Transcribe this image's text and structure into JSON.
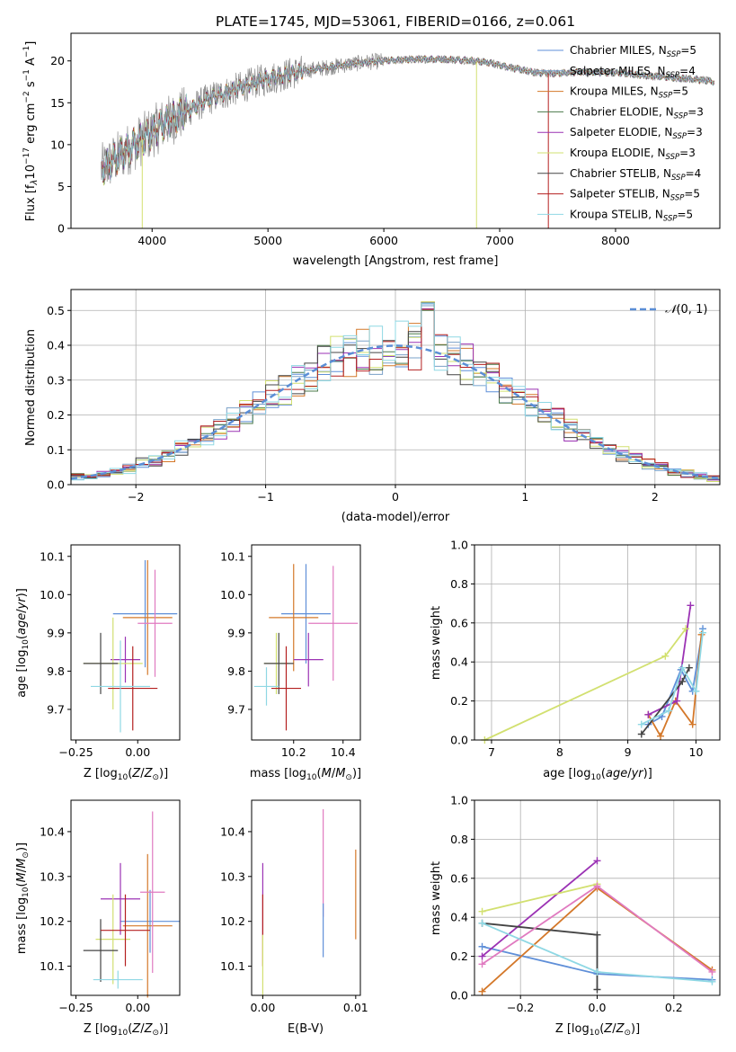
{
  "chart_data": [
    {
      "type": "line",
      "title": "PLATE=1745, MJD=53061, FIBERID=0166, z=0.061",
      "xlabel": "wavelength [Angstrom, rest frame]",
      "ylabel": "Flux [f_λ10^-17 erg cm^-2 s^-1 A^-1]",
      "xlim": [
        3300,
        8900
      ],
      "ylim": [
        0,
        23.3
      ],
      "xticks": [
        4000,
        5000,
        6000,
        7000,
        8000
      ],
      "yticks": [
        0,
        5,
        10,
        15,
        20
      ],
      "legend_position": "upper right",
      "continuum": {
        "x": [
          3560,
          3700,
          3900,
          4100,
          4300,
          4500,
          4700,
          4900,
          5100,
          5300,
          5500,
          5700,
          5900,
          6100,
          6300,
          6500,
          6700,
          6900,
          7100,
          7300,
          7500,
          7700,
          7900,
          8100,
          8300,
          8500,
          8700,
          8850
        ],
        "y": [
          7,
          8.5,
          10.5,
          12.5,
          14,
          15.5,
          16.5,
          17.5,
          18.2,
          18.8,
          19.2,
          19.6,
          19.9,
          20.1,
          20.2,
          20.2,
          20.1,
          19.8,
          19.2,
          18.6,
          18.5,
          18.7,
          18.6,
          18.5,
          18.2,
          18.0,
          17.8,
          17.5
        ]
      },
      "series": [
        {
          "name": "Chabrier MILES, N_SSP=5",
          "color": "#5f8fd8"
        },
        {
          "name": "Salpeter MILES, N_SSP=4",
          "color": "#7aa0c8"
        },
        {
          "name": "Kroupa MILES, N_SSP=5",
          "color": "#d4782a"
        },
        {
          "name": "Chabrier ELODIE, N_SSP=3",
          "color": "#4a7a4a"
        },
        {
          "name": "Salpeter ELODIE, N_SSP=3",
          "color": "#9b32b4"
        },
        {
          "name": "Kroupa ELODIE, N_SSP=3",
          "color": "#d2e070"
        },
        {
          "name": "Chabrier STELIB, N_SSP=4",
          "color": "#444444"
        },
        {
          "name": "Salpeter STELIB, N_SSP=5",
          "color": "#b42020"
        },
        {
          "name": "Kroupa STELIB, N_SSP=5",
          "color": "#8fd8e4"
        }
      ]
    },
    {
      "type": "line",
      "xlabel": "(data-model)/error",
      "ylabel": "Normed distribution",
      "xlim": [
        -2.5,
        2.5
      ],
      "ylim": [
        0,
        0.56
      ],
      "xticks": [
        -2,
        -1,
        0,
        1,
        2
      ],
      "yticks": [
        0.0,
        0.1,
        0.2,
        0.3,
        0.4,
        0.5
      ],
      "grid": true,
      "legend": "N(0,1)",
      "legend_position": "upper right"
    },
    {
      "type": "scatter",
      "xlabel": "Z [log10(Z/Z⊙)]",
      "ylabel": "age [log10(age/yr)]",
      "xlim": [
        -0.27,
        0.17
      ],
      "ylim": [
        9.62,
        10.13
      ],
      "xticks": [
        -0.25,
        0.0
      ],
      "yticks": [
        9.7,
        9.8,
        9.9,
        10.0,
        10.1
      ],
      "points": [
        {
          "x": 0.03,
          "y": 9.95,
          "xerr": 0.13,
          "yerr": 0.14,
          "color": "#5f8fd8"
        },
        {
          "x": 0.04,
          "y": 9.94,
          "xerr": 0.1,
          "yerr": 0.15,
          "color": "#d4782a"
        },
        {
          "x": 0.07,
          "y": 9.925,
          "xerr": 0.07,
          "yerr": 0.14,
          "color": "#e07ac0"
        },
        {
          "x": -0.05,
          "y": 9.83,
          "xerr": 0.06,
          "yerr": 0.06,
          "color": "#9b32b4"
        },
        {
          "x": -0.1,
          "y": 9.82,
          "xerr": 0.12,
          "yerr": 0.12,
          "color": "#d2e070"
        },
        {
          "x": -0.15,
          "y": 9.82,
          "xerr": 0.07,
          "yerr": 0.08,
          "color": "#444444"
        },
        {
          "x": -0.02,
          "y": 9.755,
          "xerr": 0.1,
          "yerr": 0.11,
          "color": "#b42020"
        },
        {
          "x": -0.07,
          "y": 9.76,
          "xerr": 0.12,
          "yerr": 0.12,
          "color": "#8fd8e4"
        }
      ]
    },
    {
      "type": "scatter",
      "xlabel": "mass [log10(M/M⊙)]",
      "xlim": [
        10.03,
        10.47
      ],
      "ylim": [
        9.62,
        10.13
      ],
      "xticks": [
        10.2,
        10.4
      ],
      "yticks": [
        9.7,
        9.8,
        9.9,
        10.0,
        10.1
      ],
      "points": [
        {
          "x": 10.25,
          "y": 9.95,
          "xerr": 0.1,
          "yerr": 0.13,
          "color": "#5f8fd8"
        },
        {
          "x": 10.2,
          "y": 9.94,
          "xerr": 0.1,
          "yerr": 0.14,
          "color": "#d4782a"
        },
        {
          "x": 10.36,
          "y": 9.925,
          "xerr": 0.1,
          "yerr": 0.15,
          "color": "#e07ac0"
        },
        {
          "x": 10.26,
          "y": 9.83,
          "xerr": 0.06,
          "yerr": 0.07,
          "color": "#9b32b4"
        },
        {
          "x": 10.13,
          "y": 9.82,
          "xerr": 0.05,
          "yerr": 0.08,
          "color": "#d2e070"
        },
        {
          "x": 10.14,
          "y": 9.82,
          "xerr": 0.06,
          "yerr": 0.08,
          "color": "#444444"
        },
        {
          "x": 10.17,
          "y": 9.755,
          "xerr": 0.06,
          "yerr": 0.11,
          "color": "#b42020"
        },
        {
          "x": 10.09,
          "y": 9.76,
          "xerr": 0.05,
          "yerr": 0.05,
          "color": "#8fd8e4"
        }
      ]
    },
    {
      "type": "line",
      "xlabel": "age [log10(age/yr)]",
      "ylabel": "mass weight",
      "xlim": [
        6.75,
        10.35
      ],
      "ylim": [
        0,
        1.0
      ],
      "xticks": [
        7,
        8,
        9,
        10
      ],
      "yticks": [
        0.0,
        0.2,
        0.4,
        0.6,
        0.8,
        1.0
      ],
      "grid": true,
      "series": [
        {
          "color": "#5f8fd8",
          "x": [
            9.3,
            9.5,
            9.78,
            9.95,
            10.1
          ],
          "y": [
            0.08,
            0.12,
            0.36,
            0.25,
            0.57
          ]
        },
        {
          "color": "#d4782a",
          "x": [
            9.3,
            9.48,
            9.7,
            9.95,
            10.08
          ],
          "y": [
            0.13,
            0.02,
            0.2,
            0.08,
            0.54
          ]
        },
        {
          "color": "#9b32b4",
          "x": [
            9.3,
            9.72,
            9.92
          ],
          "y": [
            0.13,
            0.2,
            0.69
          ]
        },
        {
          "color": "#d2e070",
          "x": [
            6.9,
            9.55,
            9.85
          ],
          "y": [
            0.0,
            0.43,
            0.57
          ]
        },
        {
          "color": "#444444",
          "x": [
            9.2,
            9.8,
            9.9
          ],
          "y": [
            0.03,
            0.3,
            0.37
          ]
        },
        {
          "color": "#8fd8e4",
          "x": [
            9.2,
            9.6,
            9.8,
            10.0,
            10.1
          ],
          "y": [
            0.08,
            0.15,
            0.37,
            0.25,
            0.55
          ]
        }
      ]
    },
    {
      "type": "scatter",
      "xlabel": "Z [log10(Z/Z⊙)]",
      "ylabel": "mass [log10(M/M⊙)]",
      "xlim": [
        -0.27,
        0.17
      ],
      "ylim": [
        10.035,
        10.47
      ],
      "xticks": [
        -0.25,
        0.0
      ],
      "yticks": [
        10.1,
        10.2,
        10.3,
        10.4
      ],
      "points": [
        {
          "x": 0.05,
          "y": 10.2,
          "xerr": 0.12,
          "yerr": 0.07,
          "color": "#5f8fd8"
        },
        {
          "x": 0.04,
          "y": 10.19,
          "xerr": 0.1,
          "yerr": 0.16,
          "color": "#d4782a"
        },
        {
          "x": 0.06,
          "y": 10.265,
          "xerr": 0.05,
          "yerr": 0.18,
          "color": "#e07ac0"
        },
        {
          "x": -0.07,
          "y": 10.25,
          "xerr": 0.08,
          "yerr": 0.08,
          "color": "#9b32b4"
        },
        {
          "x": -0.1,
          "y": 10.16,
          "xerr": 0.07,
          "yerr": 0.1,
          "color": "#d2e070"
        },
        {
          "x": -0.15,
          "y": 10.135,
          "xerr": 0.07,
          "yerr": 0.07,
          "color": "#444444"
        },
        {
          "x": -0.05,
          "y": 10.18,
          "xerr": 0.1,
          "yerr": 0.08,
          "color": "#b42020"
        },
        {
          "x": -0.08,
          "y": 10.07,
          "xerr": 0.1,
          "yerr": 0.02,
          "color": "#8fd8e4"
        }
      ]
    },
    {
      "type": "scatter",
      "xlabel": "E(B-V)",
      "xlim": [
        -0.0012,
        0.0105
      ],
      "ylim": [
        10.035,
        10.47
      ],
      "xticks": [
        0.0,
        0.01
      ],
      "xtick_labels": [
        "0.00",
        "0.01"
      ],
      "yticks": [
        10.1,
        10.2,
        10.3,
        10.4
      ],
      "points": [
        {
          "x": 0.0,
          "y": 10.25,
          "yerr": 0.08,
          "color": "#9b32b4"
        },
        {
          "x": 0.0,
          "y": 10.18,
          "yerr": 0.08,
          "color": "#b42020"
        },
        {
          "x": 0.0,
          "y": 10.1,
          "yerr": 0.07,
          "color": "#d2e070"
        },
        {
          "x": 0.0065,
          "y": 10.33,
          "yerr": 0.12,
          "color": "#e07ac0"
        },
        {
          "x": 0.0065,
          "y": 10.18,
          "yerr": 0.06,
          "color": "#5f8fd8"
        },
        {
          "x": 0.01,
          "y": 10.26,
          "yerr": 0.1,
          "color": "#d4782a"
        }
      ]
    },
    {
      "type": "line",
      "xlabel": "Z [log10(Z/Z⊙)]",
      "ylabel": "mass weight",
      "xlim": [
        -0.32,
        0.32
      ],
      "ylim": [
        0,
        1.0
      ],
      "xticks": [
        -0.2,
        0.0,
        0.2
      ],
      "yticks": [
        0.0,
        0.2,
        0.4,
        0.6,
        0.8,
        1.0
      ],
      "grid": true,
      "series": [
        {
          "color": "#5f8fd8",
          "x": [
            -0.3,
            0.0,
            0.3
          ],
          "y": [
            0.25,
            0.11,
            0.08
          ]
        },
        {
          "color": "#d4782a",
          "x": [
            -0.3,
            0.0,
            0.3
          ],
          "y": [
            0.02,
            0.55,
            0.13
          ]
        },
        {
          "color": "#9b32b4",
          "x": [
            -0.3,
            0.0
          ],
          "y": [
            0.2,
            0.69
          ]
        },
        {
          "color": "#d2e070",
          "x": [
            -0.3,
            0.0
          ],
          "y": [
            0.43,
            0.57
          ]
        },
        {
          "color": "#444444",
          "x": [
            -0.3,
            0.0,
            0.0
          ],
          "y": [
            0.37,
            0.31,
            0.03
          ]
        },
        {
          "color": "#e07ac0",
          "x": [
            -0.3,
            0.0,
            0.3
          ],
          "y": [
            0.16,
            0.56,
            0.12
          ]
        },
        {
          "color": "#8fd8e4",
          "x": [
            -0.3,
            0.0,
            0.3
          ],
          "y": [
            0.37,
            0.12,
            0.07
          ]
        }
      ]
    }
  ]
}
